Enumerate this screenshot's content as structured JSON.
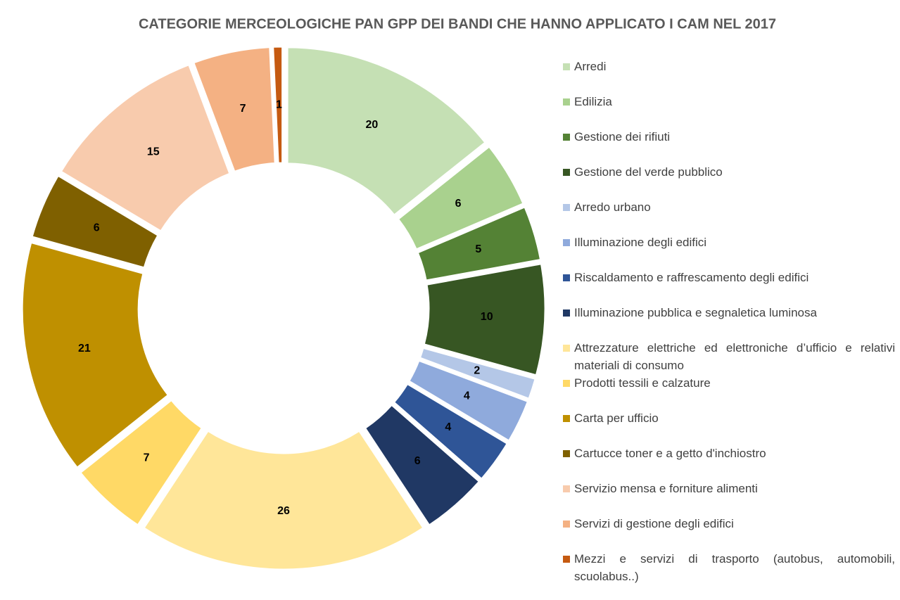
{
  "chart_data": {
    "type": "donut",
    "title": "CATEGORIE MERCEOLOGICHE PAN GPP DEI BANDI CHE HANNO APPLICATO I CAM NEL 2017",
    "categories": [
      "Arredi",
      "Edilizia",
      "Gestione dei rifiuti",
      "Gestione del verde pubblico",
      "Arredo urbano",
      "Illuminazione degli edifici",
      "Riscaldamento  e  raffrescamento  degli  edifici",
      "Illuminazione pubblica e segnaletica luminosa",
      "Attrezzature  elettriche  ed  elettroniche  d’ufficio  e   relativi materiali di consumo",
      "Prodotti tessili e calzature",
      "Carta per ufficio",
      "Cartucce  toner e a getto d'inchiostro",
      "Servizio mensa e forniture alimenti",
      "Servizi di gestione degli edifici",
      "Mezzi e servizi di trasporto (autobus, automobili, scuolabus..)"
    ],
    "values": [
      20,
      6,
      5,
      10,
      2,
      4,
      4,
      6,
      26,
      7,
      21,
      6,
      15,
      7,
      1
    ],
    "colors": [
      "#c5e0b4",
      "#a9d18e",
      "#548235",
      "#375623",
      "#b4c7e7",
      "#8faadc",
      "#2f5597",
      "#203864",
      "#ffe699",
      "#ffd966",
      "#bf9000",
      "#7f6000",
      "#f8cbad",
      "#f4b183",
      "#c55a11"
    ],
    "legend": "right"
  }
}
